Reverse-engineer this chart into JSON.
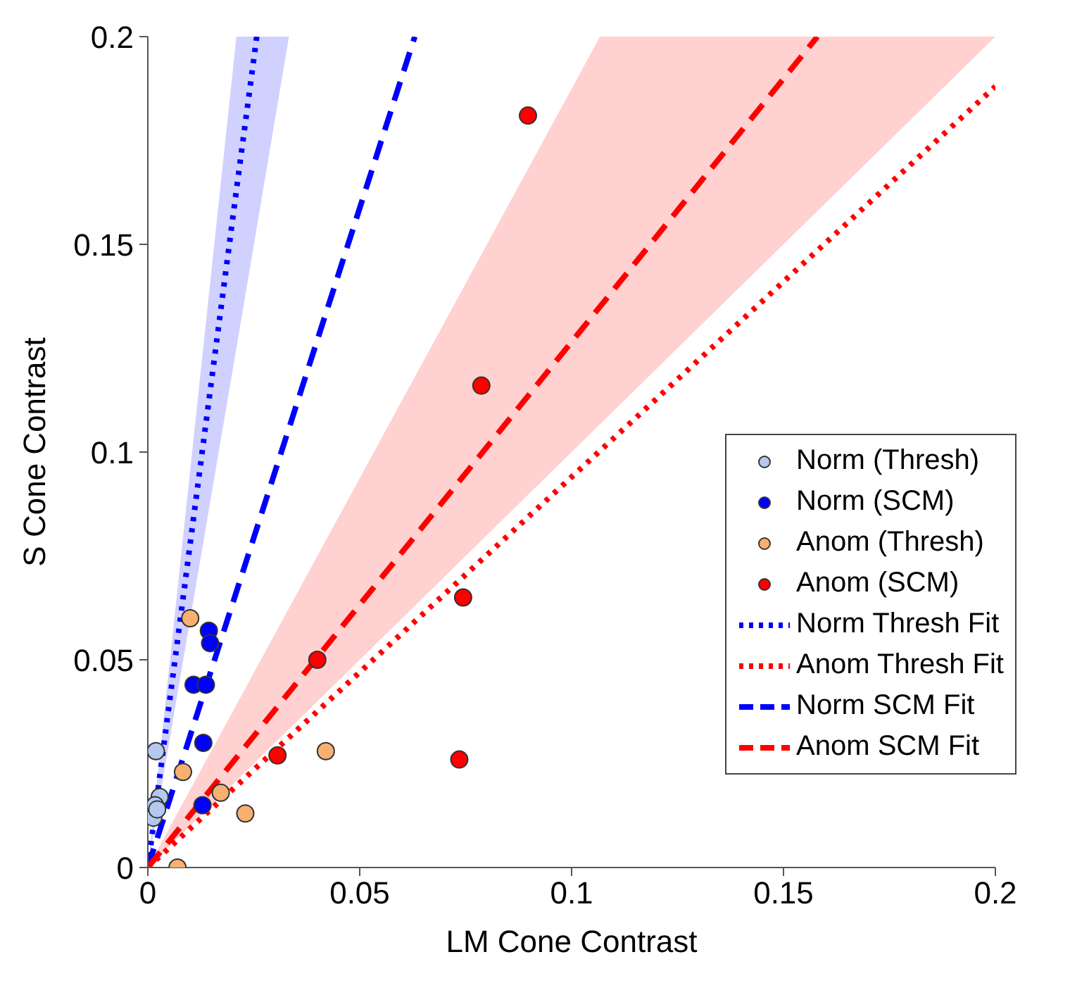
{
  "chart_data": {
    "type": "scatter",
    "xlabel": "LM Cone Contrast",
    "ylabel": "S Cone Contrast",
    "xlim": [
      0,
      0.2
    ],
    "ylim": [
      0,
      0.2
    ],
    "xticks": [
      0,
      0.05,
      0.1,
      0.15,
      0.2
    ],
    "yticks": [
      0,
      0.05,
      0.1,
      0.15,
      0.2
    ],
    "grid": false,
    "legend": "right",
    "marker": "circle",
    "series": [
      {
        "name": "Norm (Thresh)",
        "color": "#b4c8f0",
        "x": [
          0.0019,
          0.0028,
          0.0017,
          0.0013,
          0.0022
        ],
        "values": [
          0.028,
          0.017,
          0.015,
          0.012,
          0.014
        ]
      },
      {
        "name": "Norm (SCM)",
        "color": "#0000ff",
        "x": [
          0.0144,
          0.0147,
          0.0108,
          0.0137,
          0.0131,
          0.0129
        ],
        "values": [
          0.057,
          0.054,
          0.044,
          0.044,
          0.03,
          0.015
        ]
      },
      {
        "name": "Anom (Thresh)",
        "color": "#f8b070",
        "x": [
          0.01,
          0.0083,
          0.0172,
          0.023,
          0.042,
          0.007
        ],
        "values": [
          0.06,
          0.023,
          0.018,
          0.013,
          0.028,
          0.0
        ]
      },
      {
        "name": "Anom (SCM)",
        "color": "#ff0000",
        "x": [
          0.04,
          0.0306,
          0.0744,
          0.0735,
          0.0787,
          0.0897
        ],
        "values": [
          0.05,
          0.027,
          0.065,
          0.026,
          0.116,
          0.181
        ]
      },
      {
        "name": "Norm Thresh Fit",
        "type": "line",
        "color": "#0000ff",
        "line_style": "dotted",
        "marker": "none",
        "x": [
          0,
          0.0209,
          0.0257,
          0.0333
        ],
        "values": [
          0,
          0.163,
          0.2,
          null
        ],
        "lower": [
          0,
          0.125,
          0.154,
          0.2
        ],
        "upper": [
          0,
          0.2,
          0.2,
          0.2
        ]
      },
      {
        "name": "Anom Thresh Fit",
        "type": "line",
        "color": "#ff0000",
        "line_style": "dotted",
        "marker": "none",
        "x": [
          0,
          0.2
        ],
        "values": [
          0,
          0.188
        ]
      },
      {
        "name": "Norm SCM Fit",
        "type": "line",
        "color": "#0000ff",
        "line_style": "dashed",
        "marker": "none",
        "x": [
          0,
          0.063
        ],
        "values": [
          0,
          0.2
        ]
      },
      {
        "name": "Anom SCM Fit",
        "type": "line",
        "color": "#ff0000",
        "line_style": "dashed",
        "marker": "none",
        "x": [
          0,
          0.1067,
          0.158,
          0.2
        ],
        "values": [
          0,
          0.135,
          0.2,
          null
        ],
        "lower": [
          0,
          0.1067,
          0.158,
          0.2
        ],
        "upper": [
          0,
          0.2,
          0.2,
          0.2
        ]
      }
    ]
  }
}
